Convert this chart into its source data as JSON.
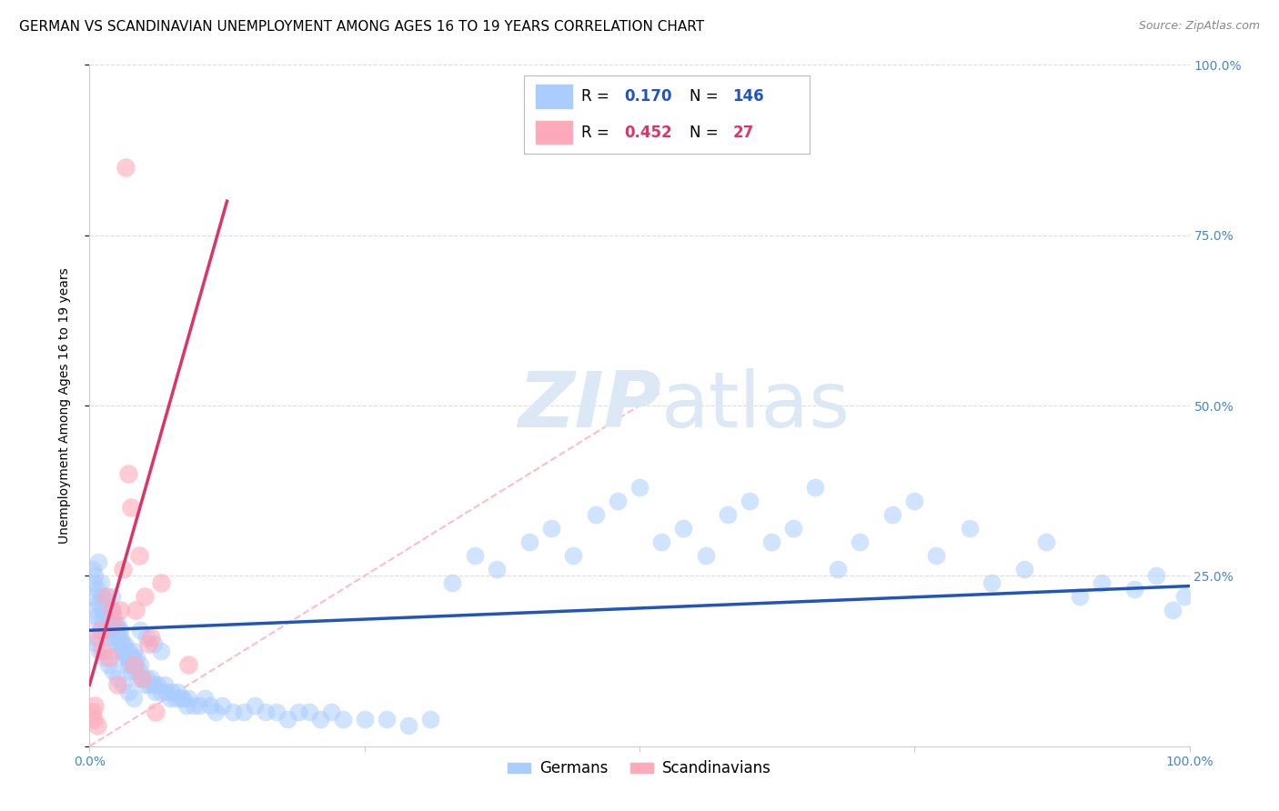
{
  "title": "GERMAN VS SCANDINAVIAN UNEMPLOYMENT AMONG AGES 16 TO 19 YEARS CORRELATION CHART",
  "source": "Source: ZipAtlas.com",
  "ylabel": "Unemployment Among Ages 16 to 19 years",
  "xlim": [
    0,
    1
  ],
  "ylim": [
    0,
    1
  ],
  "blue_R": 0.17,
  "blue_N": 146,
  "pink_R": 0.452,
  "pink_N": 27,
  "blue_color": "#aaccff",
  "blue_edge_color": "#aaccff",
  "pink_color": "#ffaabb",
  "pink_edge_color": "#ffaabb",
  "blue_line_color": "#2255bb",
  "pink_line_color": "#dd3366",
  "diag_line_color": "#ffbbcc",
  "grid_color": "#dddddd",
  "tick_color": "#4488cc",
  "legend_label_blue": "Germans",
  "legend_label_pink": "Scandinavians",
  "watermark_zip": "ZIP",
  "watermark_atlas": "atlas",
  "watermark_color": "#dde8f5",
  "blue_scatter_x": [
    0.002,
    0.003,
    0.004,
    0.005,
    0.005,
    0.006,
    0.007,
    0.008,
    0.008,
    0.009,
    0.01,
    0.01,
    0.011,
    0.012,
    0.012,
    0.013,
    0.014,
    0.015,
    0.015,
    0.015,
    0.016,
    0.017,
    0.018,
    0.018,
    0.019,
    0.02,
    0.02,
    0.02,
    0.021,
    0.022,
    0.022,
    0.023,
    0.024,
    0.025,
    0.025,
    0.026,
    0.027,
    0.028,
    0.028,
    0.029,
    0.03,
    0.03,
    0.031,
    0.032,
    0.033,
    0.034,
    0.035,
    0.035,
    0.036,
    0.037,
    0.038,
    0.039,
    0.04,
    0.04,
    0.041,
    0.042,
    0.043,
    0.044,
    0.045,
    0.046,
    0.048,
    0.05,
    0.052,
    0.054,
    0.056,
    0.058,
    0.06,
    0.062,
    0.065,
    0.068,
    0.07,
    0.073,
    0.075,
    0.078,
    0.08,
    0.083,
    0.085,
    0.088,
    0.09,
    0.095,
    0.1,
    0.105,
    0.11,
    0.115,
    0.12,
    0.13,
    0.14,
    0.15,
    0.16,
    0.17,
    0.18,
    0.19,
    0.2,
    0.21,
    0.22,
    0.23,
    0.25,
    0.27,
    0.29,
    0.31,
    0.33,
    0.35,
    0.37,
    0.4,
    0.42,
    0.44,
    0.46,
    0.48,
    0.5,
    0.52,
    0.54,
    0.56,
    0.58,
    0.6,
    0.62,
    0.64,
    0.66,
    0.68,
    0.7,
    0.73,
    0.75,
    0.77,
    0.8,
    0.82,
    0.85,
    0.87,
    0.9,
    0.92,
    0.95,
    0.97,
    0.985,
    0.995,
    0.003,
    0.006,
    0.009,
    0.013,
    0.017,
    0.021,
    0.025,
    0.03,
    0.035,
    0.04,
    0.046,
    0.052,
    0.058,
    0.065
  ],
  "blue_scatter_y": [
    0.22,
    0.26,
    0.24,
    0.2,
    0.25,
    0.19,
    0.23,
    0.21,
    0.27,
    0.18,
    0.22,
    0.24,
    0.2,
    0.18,
    0.22,
    0.2,
    0.19,
    0.17,
    0.2,
    0.21,
    0.18,
    0.19,
    0.17,
    0.2,
    0.16,
    0.18,
    0.2,
    0.22,
    0.17,
    0.16,
    0.19,
    0.18,
    0.15,
    0.16,
    0.18,
    0.17,
    0.14,
    0.16,
    0.17,
    0.15,
    0.14,
    0.15,
    0.13,
    0.15,
    0.14,
    0.13,
    0.12,
    0.14,
    0.13,
    0.12,
    0.11,
    0.13,
    0.12,
    0.14,
    0.11,
    0.12,
    0.13,
    0.1,
    0.11,
    0.12,
    0.1,
    0.09,
    0.1,
    0.09,
    0.1,
    0.09,
    0.08,
    0.09,
    0.08,
    0.09,
    0.08,
    0.07,
    0.08,
    0.07,
    0.08,
    0.07,
    0.07,
    0.06,
    0.07,
    0.06,
    0.06,
    0.07,
    0.06,
    0.05,
    0.06,
    0.05,
    0.05,
    0.06,
    0.05,
    0.05,
    0.04,
    0.05,
    0.05,
    0.04,
    0.05,
    0.04,
    0.04,
    0.04,
    0.03,
    0.04,
    0.24,
    0.28,
    0.26,
    0.3,
    0.32,
    0.28,
    0.34,
    0.36,
    0.38,
    0.3,
    0.32,
    0.28,
    0.34,
    0.36,
    0.3,
    0.32,
    0.38,
    0.26,
    0.3,
    0.34,
    0.36,
    0.28,
    0.32,
    0.24,
    0.26,
    0.3,
    0.22,
    0.24,
    0.23,
    0.25,
    0.2,
    0.22,
    0.16,
    0.15,
    0.14,
    0.13,
    0.12,
    0.11,
    0.1,
    0.09,
    0.08,
    0.07,
    0.17,
    0.16,
    0.15,
    0.14
  ],
  "pink_scatter_x": [
    0.003,
    0.004,
    0.005,
    0.007,
    0.008,
    0.01,
    0.012,
    0.015,
    0.018,
    0.02,
    0.022,
    0.025,
    0.028,
    0.03,
    0.033,
    0.035,
    0.038,
    0.04,
    0.042,
    0.045,
    0.048,
    0.05,
    0.053,
    0.056,
    0.06,
    0.065,
    0.09
  ],
  "pink_scatter_y": [
    0.05,
    0.04,
    0.06,
    0.03,
    0.16,
    0.17,
    0.14,
    0.22,
    0.13,
    0.2,
    0.18,
    0.09,
    0.2,
    0.26,
    0.85,
    0.4,
    0.35,
    0.12,
    0.2,
    0.28,
    0.1,
    0.22,
    0.15,
    0.16,
    0.05,
    0.24,
    0.12
  ],
  "blue_regline_x": [
    0.0,
    1.0
  ],
  "blue_regline_y": [
    0.17,
    0.235
  ],
  "pink_regline_x": [
    0.0,
    0.125
  ],
  "pink_regline_y": [
    0.09,
    0.8
  ],
  "diag_line_x": [
    0.0,
    0.52
  ],
  "diag_line_y": [
    0.0,
    0.52
  ],
  "title_fontsize": 11,
  "source_fontsize": 9,
  "axis_label_fontsize": 10,
  "tick_fontsize": 10,
  "legend_fontsize": 12
}
